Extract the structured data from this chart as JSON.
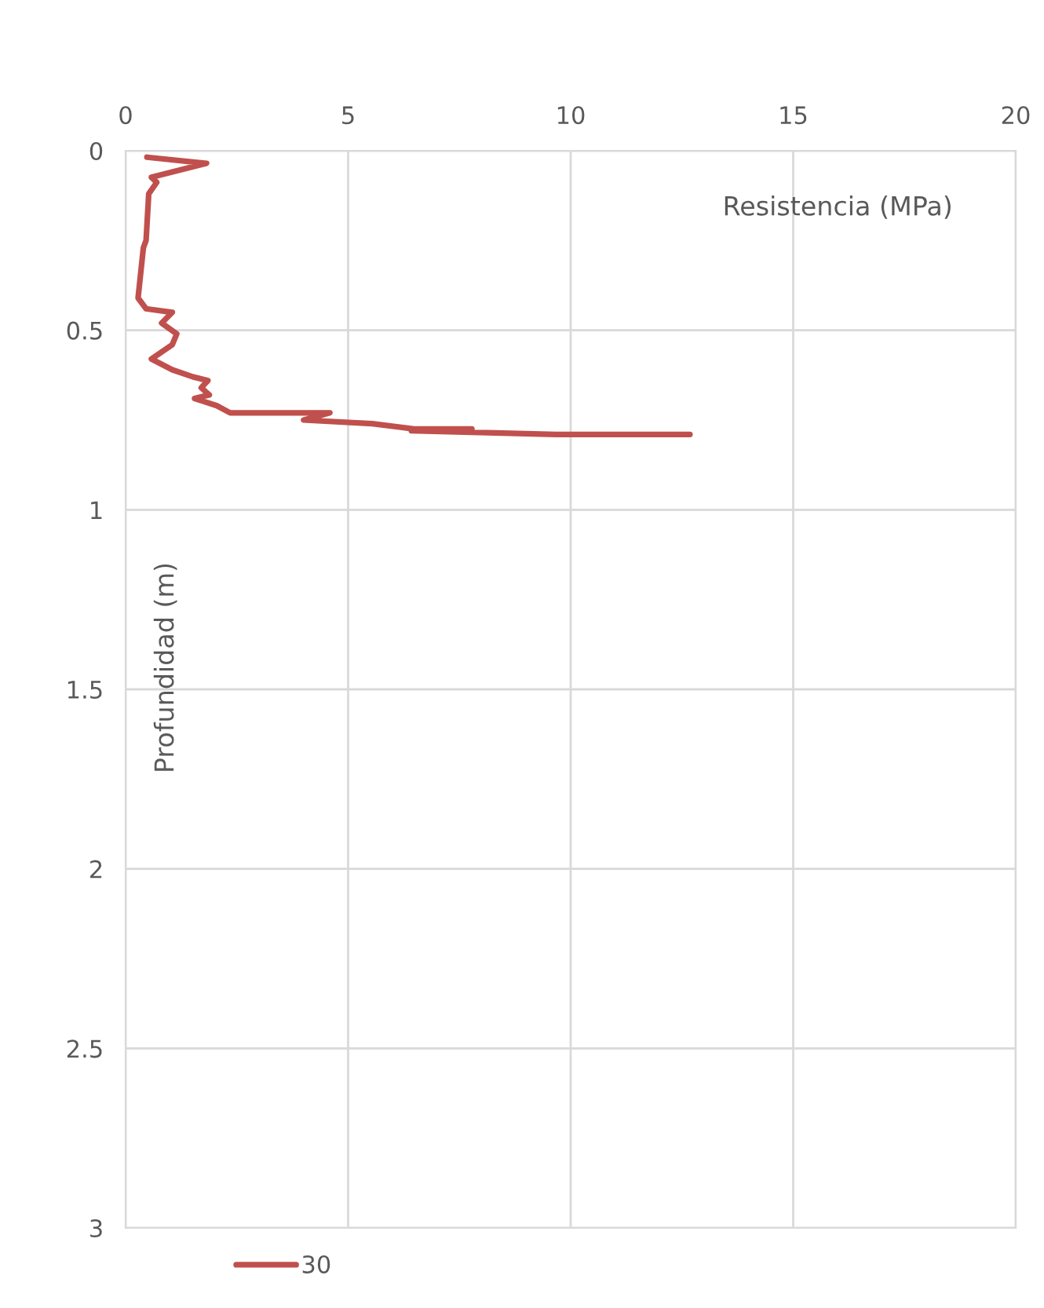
{
  "chart_data": {
    "type": "line",
    "xlabel": "Resistencia (MPa)",
    "ylabel": "Profundidad (m)",
    "xlim": [
      0,
      20
    ],
    "xticks": [
      0,
      5,
      10,
      15,
      20
    ],
    "ylim": [
      3,
      0
    ],
    "yticks": [
      0,
      0.5,
      1,
      1.5,
      2,
      2.5,
      3
    ],
    "grid": true,
    "legend": "bottom",
    "marker": "none",
    "line_style": "solid",
    "series": [
      {
        "name": "30",
        "color": "#c0504d",
        "x": [
          0.48,
          1.82,
          0.58,
          0.7,
          0.52,
          0.46,
          0.4,
          0.28,
          0.46,
          1.05,
          0.81,
          1.15,
          1.05,
          0.58,
          1.05,
          1.52,
          1.85,
          1.7,
          1.88,
          1.55,
          2.05,
          2.35,
          4.59,
          4.0,
          5.54,
          6.48,
          7.78,
          6.42,
          9.67,
          12.68
        ],
        "values": [
          0.018,
          0.035,
          0.074,
          0.088,
          0.12,
          0.25,
          0.27,
          0.41,
          0.44,
          0.45,
          0.48,
          0.51,
          0.54,
          0.58,
          0.61,
          0.63,
          0.64,
          0.66,
          0.68,
          0.69,
          0.71,
          0.73,
          0.73,
          0.75,
          0.76,
          0.775,
          0.775,
          0.78,
          0.79,
          0.79
        ]
      }
    ]
  }
}
